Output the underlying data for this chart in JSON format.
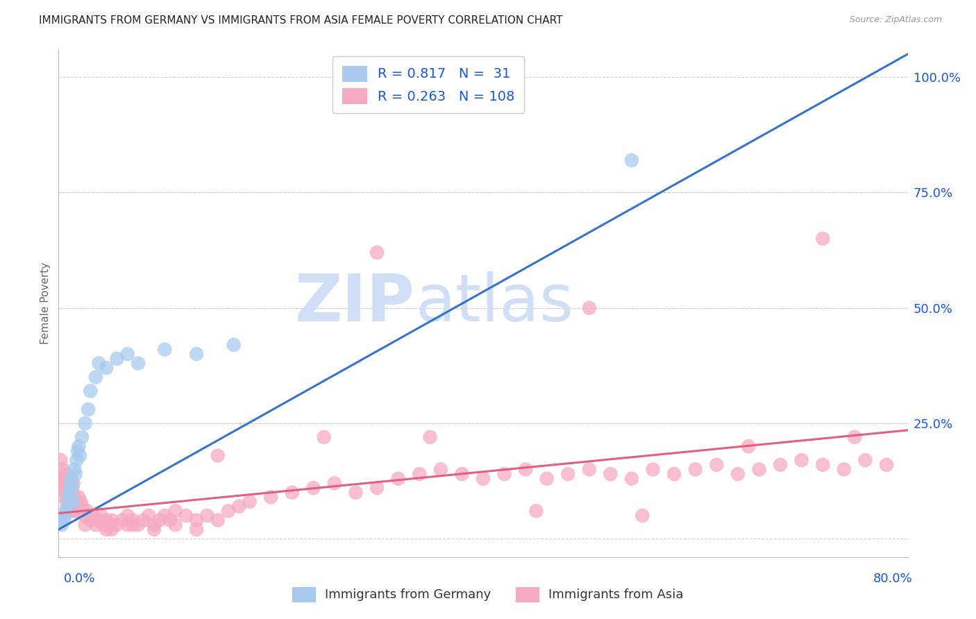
{
  "title": "IMMIGRANTS FROM GERMANY VS IMMIGRANTS FROM ASIA FEMALE POVERTY CORRELATION CHART",
  "source": "Source: ZipAtlas.com",
  "ylabel": "Female Poverty",
  "xmin": 0.0,
  "xmax": 0.8,
  "ymin": -0.04,
  "ymax": 1.06,
  "germany_R": 0.817,
  "germany_N": 31,
  "asia_R": 0.263,
  "asia_N": 108,
  "germany_color": "#A8CAEE",
  "germany_line_color": "#3674C8",
  "asia_color": "#F5AABF",
  "asia_line_color": "#E06080",
  "legend_text_color": "#1a56db",
  "watermark_zip": "ZIP",
  "watermark_atlas": "atlas",
  "watermark_color": "#d0dff5",
  "background_color": "#ffffff",
  "grid_color": "#cccccc",
  "title_fontsize": 11,
  "ytick_positions": [
    0.0,
    0.25,
    0.5,
    0.75,
    1.0
  ],
  "ytick_labels": [
    "",
    "25.0%",
    "50.0%",
    "75.0%",
    "100.0%"
  ],
  "ger_line_x0": 0.0,
  "ger_line_y0": 0.02,
  "ger_line_x1": 0.8,
  "ger_line_y1": 1.05,
  "asia_line_x0": 0.0,
  "asia_line_y0": 0.055,
  "asia_line_x1": 0.8,
  "asia_line_y1": 0.235,
  "germany_x": [
    0.003,
    0.005,
    0.006,
    0.007,
    0.008,
    0.009,
    0.01,
    0.011,
    0.012,
    0.013,
    0.014,
    0.015,
    0.016,
    0.017,
    0.018,
    0.019,
    0.02,
    0.022,
    0.025,
    0.028,
    0.03,
    0.035,
    0.038,
    0.045,
    0.055,
    0.065,
    0.075,
    0.1,
    0.13,
    0.165,
    0.54
  ],
  "germany_y": [
    0.03,
    0.04,
    0.05,
    0.06,
    0.07,
    0.09,
    0.1,
    0.12,
    0.13,
    0.11,
    0.08,
    0.15,
    0.14,
    0.17,
    0.19,
    0.2,
    0.18,
    0.22,
    0.25,
    0.28,
    0.32,
    0.35,
    0.38,
    0.37,
    0.39,
    0.4,
    0.38,
    0.41,
    0.4,
    0.42,
    0.82
  ],
  "asia_x": [
    0.002,
    0.003,
    0.004,
    0.004,
    0.005,
    0.005,
    0.006,
    0.007,
    0.007,
    0.008,
    0.008,
    0.009,
    0.009,
    0.01,
    0.01,
    0.011,
    0.012,
    0.012,
    0.013,
    0.014,
    0.014,
    0.015,
    0.015,
    0.016,
    0.017,
    0.018,
    0.019,
    0.02,
    0.021,
    0.022,
    0.025,
    0.027,
    0.03,
    0.032,
    0.035,
    0.038,
    0.04,
    0.042,
    0.045,
    0.048,
    0.05,
    0.055,
    0.06,
    0.065,
    0.07,
    0.075,
    0.08,
    0.085,
    0.09,
    0.095,
    0.1,
    0.105,
    0.11,
    0.12,
    0.13,
    0.14,
    0.15,
    0.16,
    0.17,
    0.18,
    0.2,
    0.22,
    0.24,
    0.26,
    0.28,
    0.3,
    0.32,
    0.34,
    0.36,
    0.38,
    0.4,
    0.42,
    0.44,
    0.46,
    0.48,
    0.5,
    0.52,
    0.54,
    0.56,
    0.58,
    0.6,
    0.62,
    0.64,
    0.66,
    0.68,
    0.7,
    0.72,
    0.74,
    0.76,
    0.78,
    0.3,
    0.5,
    0.72,
    0.35,
    0.15,
    0.25,
    0.45,
    0.55,
    0.65,
    0.75,
    0.05,
    0.07,
    0.09,
    0.11,
    0.13,
    0.025,
    0.045,
    0.065
  ],
  "asia_y": [
    0.17,
    0.13,
    0.15,
    0.11,
    0.12,
    0.09,
    0.14,
    0.1,
    0.13,
    0.08,
    0.11,
    0.09,
    0.07,
    0.08,
    0.1,
    0.09,
    0.07,
    0.11,
    0.06,
    0.08,
    0.12,
    0.07,
    0.09,
    0.06,
    0.08,
    0.07,
    0.09,
    0.06,
    0.08,
    0.07,
    0.05,
    0.06,
    0.04,
    0.05,
    0.03,
    0.04,
    0.05,
    0.03,
    0.04,
    0.03,
    0.04,
    0.03,
    0.04,
    0.05,
    0.04,
    0.03,
    0.04,
    0.05,
    0.03,
    0.04,
    0.05,
    0.04,
    0.06,
    0.05,
    0.04,
    0.05,
    0.04,
    0.06,
    0.07,
    0.08,
    0.09,
    0.1,
    0.11,
    0.12,
    0.1,
    0.11,
    0.13,
    0.14,
    0.15,
    0.14,
    0.13,
    0.14,
    0.15,
    0.13,
    0.14,
    0.15,
    0.14,
    0.13,
    0.15,
    0.14,
    0.15,
    0.16,
    0.14,
    0.15,
    0.16,
    0.17,
    0.16,
    0.15,
    0.17,
    0.16,
    0.62,
    0.5,
    0.65,
    0.22,
    0.18,
    0.22,
    0.06,
    0.05,
    0.2,
    0.22,
    0.02,
    0.03,
    0.02,
    0.03,
    0.02,
    0.03,
    0.02,
    0.03
  ]
}
